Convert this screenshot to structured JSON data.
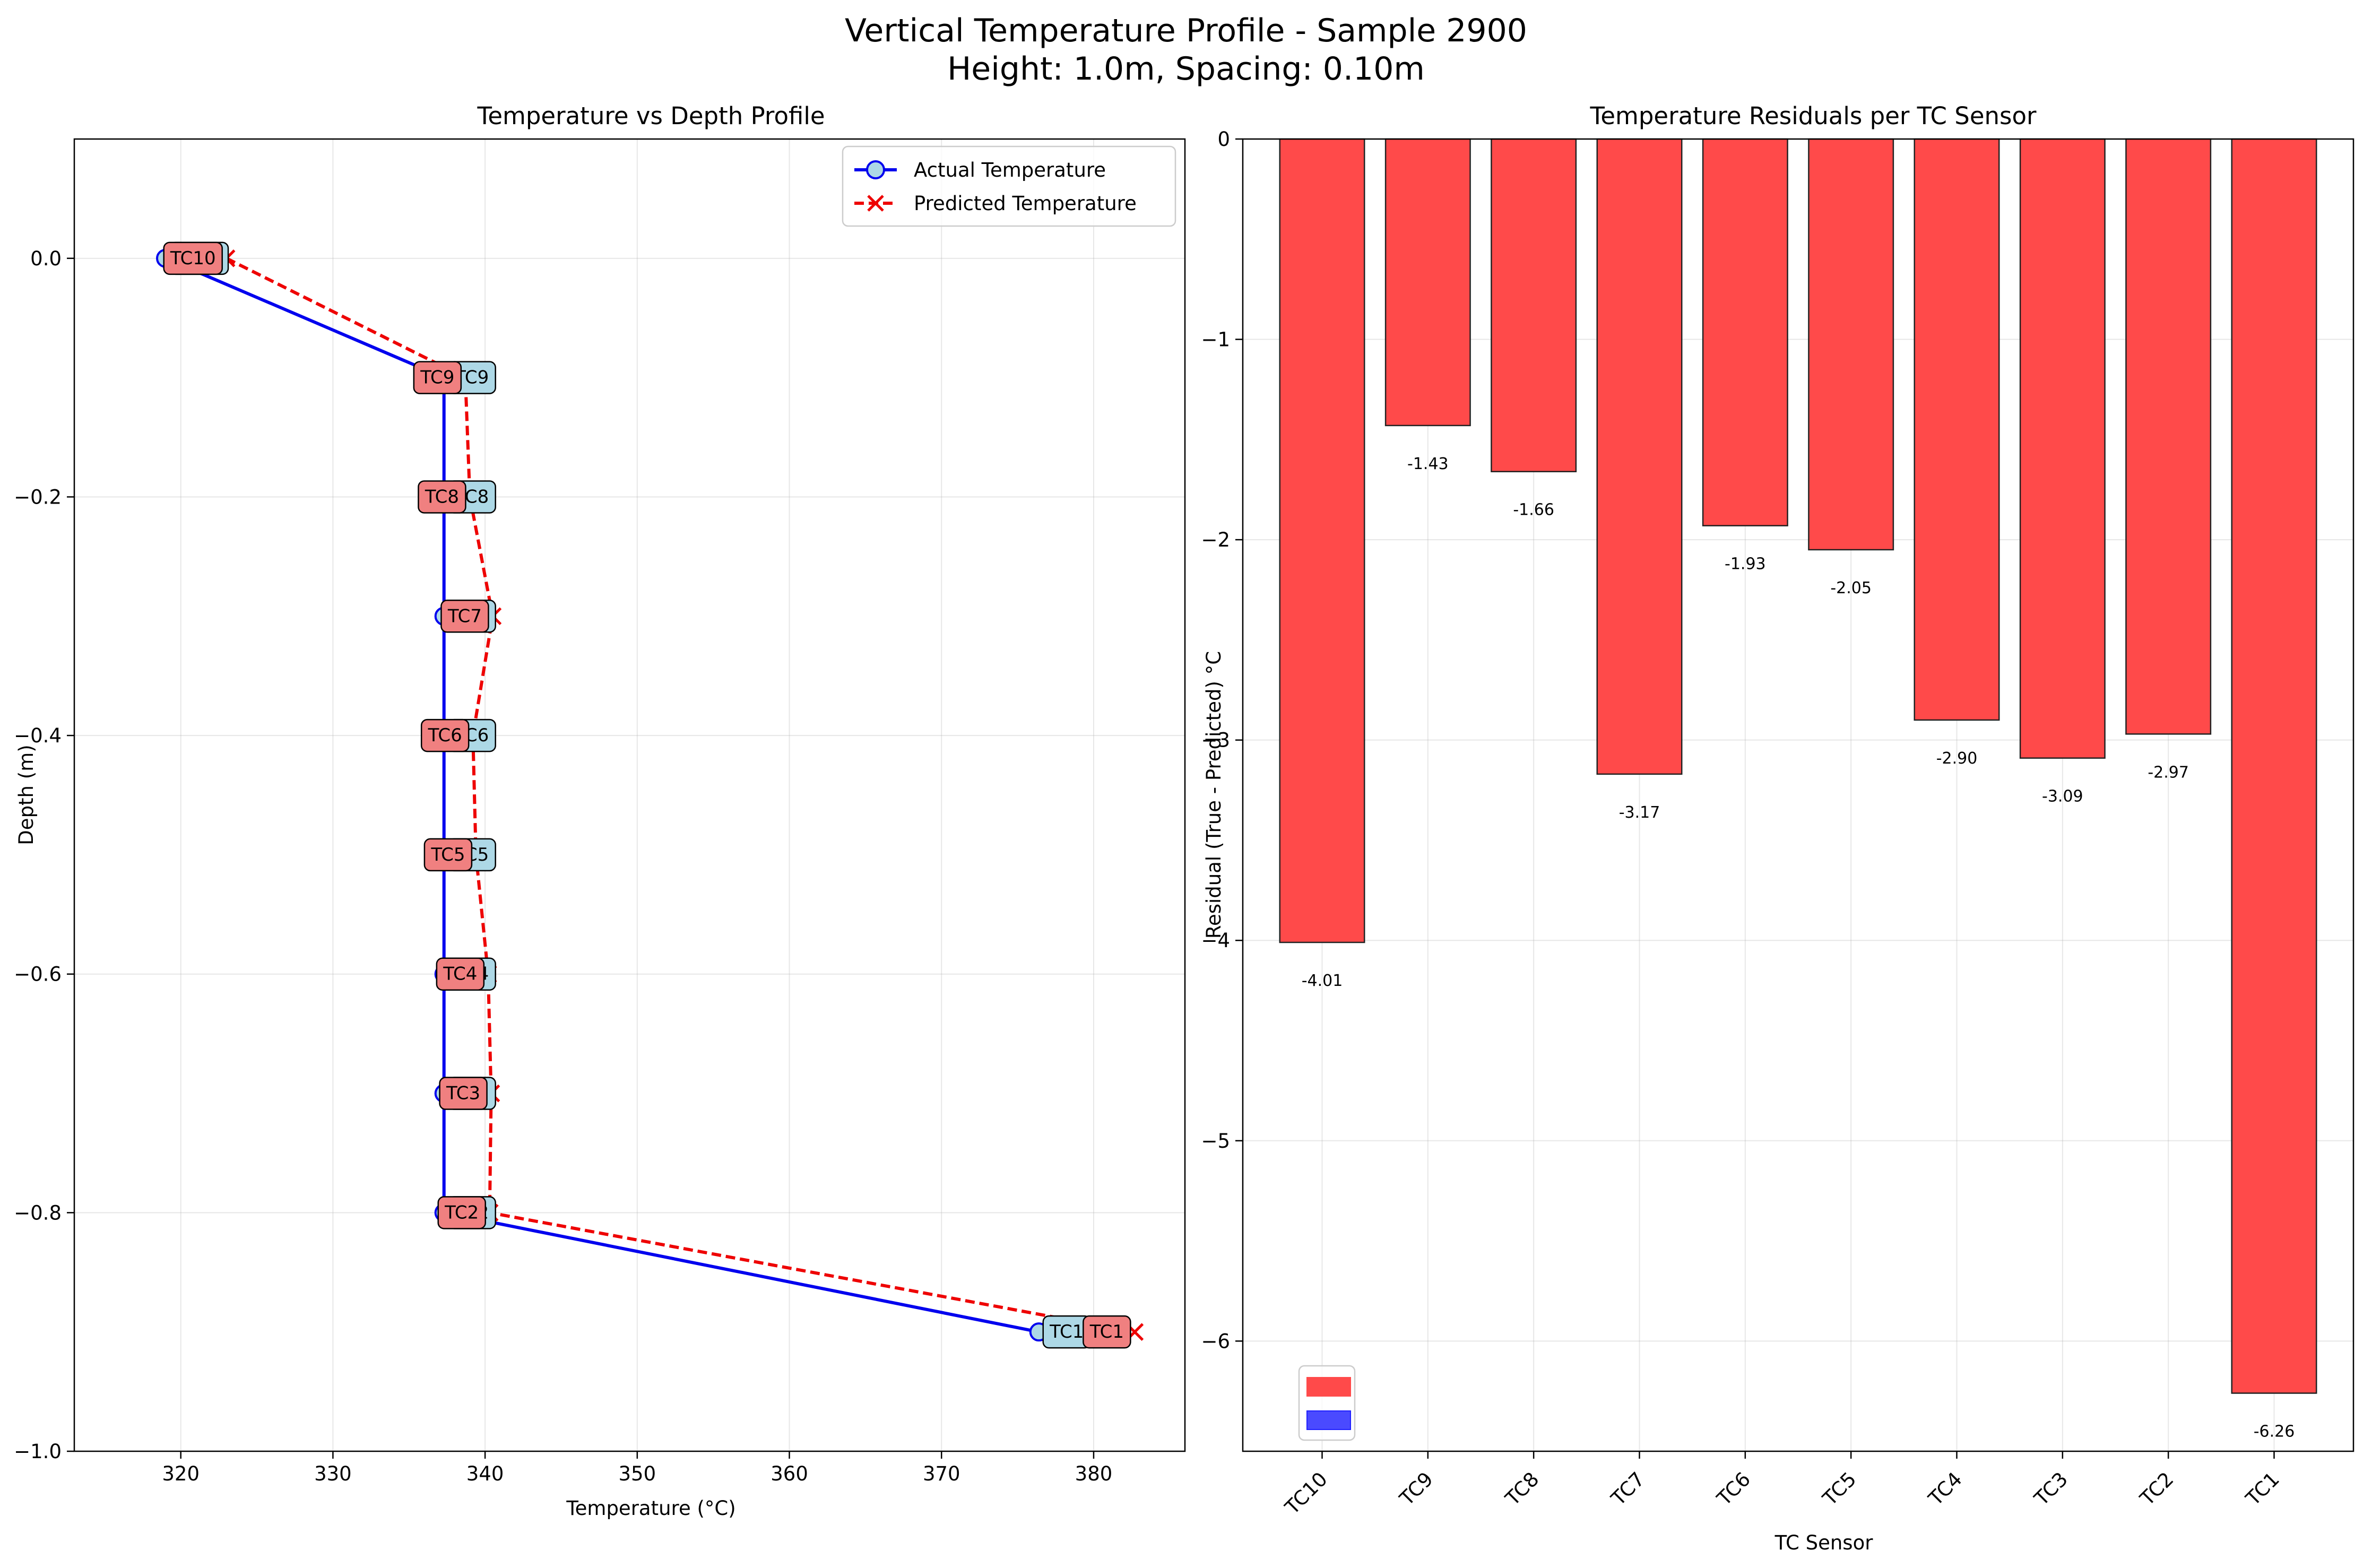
{
  "figure": {
    "title_line1": "Vertical Temperature Profile - Sample 2900",
    "title_line2": "Height: 1.0m, Spacing: 0.10m"
  },
  "colors": {
    "actual": "#0000ee",
    "predicted": "#ee0000",
    "bar_red": "#ff4a4a",
    "bar_blue": "#4a4aff",
    "label_actual_bg": "#add8e6",
    "label_pred_bg": "#f08080"
  },
  "chart_data": [
    {
      "type": "line",
      "title": "Temperature vs Depth Profile",
      "xlabel": "Temperature (°C)",
      "ylabel": "Depth (m)",
      "xlim": [
        313,
        386
      ],
      "ylim": [
        -1.0,
        0.1
      ],
      "xticks": [
        320,
        330,
        340,
        350,
        360,
        370,
        380
      ],
      "yticks": [
        0.0,
        -0.2,
        -0.4,
        -0.6,
        -0.8,
        -1.0
      ],
      "xtick_labels": [
        "320",
        "330",
        "340",
        "350",
        "360",
        "370",
        "380"
      ],
      "ytick_labels": [
        "0.0",
        "−0.2",
        "−0.4",
        "−0.6",
        "−0.8",
        "−1.0"
      ],
      "grid": true,
      "legend_position": "top-right",
      "sensor_labels": [
        "TC10",
        "TC9",
        "TC8",
        "TC7",
        "TC6",
        "TC5",
        "TC4",
        "TC3",
        "TC2",
        "TC1"
      ],
      "series": [
        {
          "name": "Actual Temperature",
          "x": [
            319.0,
            337.3,
            337.3,
            337.3,
            337.3,
            337.3,
            337.3,
            337.3,
            337.3,
            376.4
          ],
          "y": [
            0.0,
            -0.1,
            -0.2,
            -0.3,
            -0.4,
            -0.5,
            -0.6,
            -0.7,
            -0.8,
            -0.9
          ]
        },
        {
          "name": "Predicted Temperature",
          "x": [
            323.0,
            338.7,
            339.0,
            340.5,
            339.2,
            339.4,
            340.2,
            340.4,
            340.3,
            382.7
          ],
          "y": [
            0.0,
            -0.1,
            -0.2,
            -0.3,
            -0.4,
            -0.5,
            -0.6,
            -0.7,
            -0.8,
            -0.9
          ]
        }
      ]
    },
    {
      "type": "bar",
      "title": "Temperature Residuals per TC Sensor",
      "xlabel": "TC Sensor",
      "ylabel": "Residual (True - Predicted) °C",
      "ylim": [
        -6.55,
        0
      ],
      "yticks": [
        0,
        -1,
        -2,
        -3,
        -4,
        -5,
        -6
      ],
      "ytick_labels": [
        "0",
        "−1",
        "−2",
        "−3",
        "−4",
        "−5",
        "−6"
      ],
      "grid": true,
      "legend_position": "bottom-left",
      "categories": [
        "TC10",
        "TC9",
        "TC8",
        "TC7",
        "TC6",
        "TC5",
        "TC4",
        "TC3",
        "TC2",
        "TC1"
      ],
      "values": [
        -4.01,
        -1.43,
        -1.66,
        -3.17,
        -1.93,
        -2.05,
        -2.9,
        -3.09,
        -2.97,
        -6.26
      ],
      "value_labels": [
        "-4.01",
        "-1.43",
        "-1.66",
        "-3.17",
        "-1.93",
        "-2.05",
        "-2.90",
        "-3.09",
        "-2.97",
        "-6.26"
      ]
    }
  ]
}
